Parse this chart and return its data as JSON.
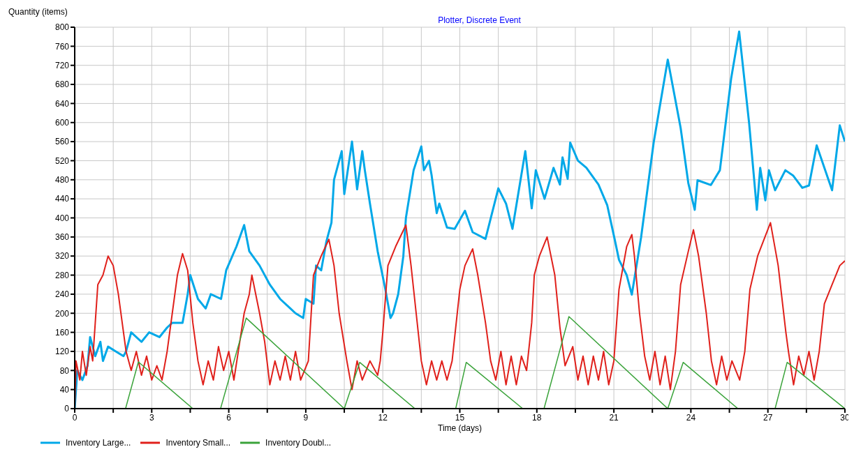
{
  "chart_data": {
    "type": "line",
    "title": "Plotter, Discrete Event",
    "xlabel": "Time (days)",
    "ylabel": "Quantity (items)",
    "xlim": [
      0,
      30
    ],
    "xticks": [
      0,
      {
        "value": 1.5,
        "label": null
      },
      3,
      {
        "value": 4.5,
        "label": null
      },
      6,
      {
        "value": 7.5,
        "label": null
      },
      9,
      {
        "value": 10.5,
        "label": null
      },
      12,
      {
        "value": 13.5,
        "label": null
      },
      15,
      {
        "value": 16.5,
        "label": null
      },
      18,
      {
        "value": 19.5,
        "label": null
      },
      21,
      {
        "value": 22.5,
        "label": null
      },
      24,
      {
        "value": 25.5,
        "label": null
      },
      27,
      {
        "value": 28.5,
        "label": null
      },
      30
    ],
    "ylim": [
      0,
      800
    ],
    "yticks": [
      0,
      40,
      80,
      120,
      160,
      200,
      240,
      280,
      320,
      360,
      400,
      440,
      480,
      520,
      560,
      600,
      640,
      680,
      720,
      760,
      800
    ],
    "grid": true,
    "legend": "bottom",
    "marker": "none",
    "line_style": "solid",
    "series": [
      {
        "name": "Inventory Large...",
        "color": "#00a8e8",
        "x": [
          0,
          0.1,
          0.3,
          0.5,
          0.6,
          0.8,
          1.0,
          1.1,
          1.3,
          1.6,
          1.9,
          2.0,
          2.2,
          2.6,
          2.9,
          3.3,
          3.6,
          3.8,
          4.2,
          4.4,
          4.5,
          4.8,
          5.1,
          5.3,
          5.7,
          5.9,
          6.3,
          6.6,
          6.8,
          7.2,
          7.6,
          8.0,
          8.4,
          8.6,
          8.9,
          9.0,
          9.3,
          9.4,
          9.6,
          9.8,
          10.0,
          10.1,
          10.4,
          10.5,
          10.8,
          11.0,
          11.2,
          11.3,
          11.5,
          11.8,
          12.1,
          12.3,
          12.4,
          12.6,
          12.8,
          12.9,
          13.2,
          13.5,
          13.6,
          13.8,
          13.9,
          14.1,
          14.2,
          14.5,
          14.8,
          15.2,
          15.5,
          16.0,
          16.5,
          16.8,
          17.05,
          17.55,
          17.8,
          17.96,
          18.3,
          18.65,
          18.9,
          19.0,
          19.2,
          19.3,
          19.6,
          19.93,
          20.4,
          20.74,
          21.04,
          21.2,
          21.5,
          21.7,
          22.06,
          22.55,
          23.1,
          23.6,
          23.9,
          24.15,
          24.26,
          24.78,
          25.13,
          25.57,
          25.88,
          26.27,
          26.57,
          26.7,
          26.9,
          27.04,
          27.28,
          27.68,
          27.98,
          28.34,
          28.6,
          28.9,
          29.5,
          29.8,
          30
        ],
        "values": [
          0,
          80,
          60,
          90,
          150,
          110,
          140,
          100,
          130,
          120,
          110,
          120,
          160,
          140,
          160,
          150,
          170,
          180,
          180,
          240,
          280,
          230,
          210,
          240,
          230,
          290,
          340,
          385,
          330,
          300,
          260,
          230,
          210,
          200,
          190,
          230,
          220,
          300,
          290,
          350,
          390,
          480,
          540,
          450,
          560,
          460,
          540,
          500,
          430,
          330,
          250,
          190,
          200,
          240,
          320,
          400,
          500,
          550,
          500,
          520,
          490,
          410,
          430,
          380,
          377,
          415,
          370,
          356,
          462,
          430,
          377,
          540,
          420,
          500,
          440,
          505,
          470,
          527,
          482,
          558,
          520,
          505,
          470,
          427,
          353,
          312,
          280,
          239,
          359,
          558,
          732,
          589,
          473,
          417,
          479,
          469,
          500,
          693,
          791,
          598,
          417,
          505,
          437,
          500,
          458,
          500,
          489,
          463,
          468,
          552,
          458,
          594,
          560
        ]
      },
      {
        "name": "Inventory Small...",
        "color": "#e0201b",
        "x": [
          0,
          0.05,
          0.2,
          0.3,
          0.45,
          0.6,
          0.7,
          0.8,
          0.9,
          1.1,
          1.3,
          1.5,
          1.7,
          1.9,
          2.0,
          2.2,
          2.4,
          2.6,
          2.8,
          3.0,
          3.2,
          3.4,
          3.6,
          3.8,
          4.0,
          4.2,
          4.4,
          4.6,
          4.8,
          5.0,
          5.2,
          5.4,
          5.6,
          5.8,
          6.0,
          6.2,
          6.4,
          6.6,
          6.8,
          6.9,
          7.2,
          7.4,
          7.6,
          7.8,
          8.0,
          8.2,
          8.4,
          8.6,
          8.8,
          9.1,
          9.3,
          9.6,
          9.9,
          10.1,
          10.3,
          10.6,
          10.8,
          11.0,
          11.2,
          11.5,
          11.8,
          11.9,
          12.0,
          12.2,
          12.5,
          12.9,
          13.1,
          13.3,
          13.5,
          13.7,
          13.9,
          14.1,
          14.3,
          14.5,
          14.7,
          14.8,
          15.0,
          15.2,
          15.5,
          15.7,
          16.0,
          16.2,
          16.4,
          16.6,
          16.8,
          17.0,
          17.2,
          17.4,
          17.6,
          17.8,
          17.9,
          18.1,
          18.4,
          18.7,
          18.9,
          19.1,
          19.4,
          19.6,
          19.8,
          20.0,
          20.2,
          20.4,
          20.6,
          20.8,
          21.0,
          21.2,
          21.3,
          21.5,
          21.7,
          21.8,
          22.0,
          22.2,
          22.4,
          22.6,
          22.8,
          23.0,
          23.2,
          23.4,
          23.6,
          23.9,
          24.1,
          24.3,
          24.6,
          24.8,
          25.0,
          25.2,
          25.4,
          25.6,
          25.9,
          26.1,
          26.3,
          26.6,
          27.1,
          27.4,
          27.7,
          27.8,
          28.0,
          28.2,
          28.4,
          28.6,
          28.8,
          29.0,
          29.2,
          29.5,
          29.8,
          30
        ],
        "values": [
          0,
          100,
          60,
          120,
          70,
          130,
          100,
          180,
          260,
          280,
          320,
          300,
          240,
          160,
          120,
          80,
          120,
          70,
          110,
          60,
          90,
          60,
          120,
          200,
          280,
          325,
          290,
          180,
          100,
          50,
          100,
          60,
          130,
          80,
          120,
          60,
          130,
          200,
          240,
          280,
          200,
          140,
          50,
          100,
          60,
          110,
          60,
          120,
          60,
          100,
          280,
          320,
          355,
          300,
          200,
          100,
          40,
          100,
          60,
          100,
          70,
          100,
          160,
          300,
          340,
          385,
          300,
          200,
          100,
          50,
          100,
          60,
          100,
          60,
          100,
          150,
          250,
          300,
          335,
          280,
          180,
          100,
          60,
          120,
          50,
          110,
          50,
          110,
          80,
          180,
          280,
          320,
          360,
          280,
          170,
          90,
          130,
          60,
          110,
          50,
          110,
          60,
          120,
          50,
          100,
          250,
          280,
          340,
          365,
          320,
          200,
          110,
          60,
          120,
          50,
          110,
          40,
          120,
          260,
          330,
          375,
          320,
          200,
          100,
          50,
          110,
          60,
          100,
          60,
          120,
          250,
          320,
          390,
          300,
          160,
          120,
          50,
          110,
          70,
          120,
          60,
          120,
          220,
          260,
          300,
          310
        ]
      },
      {
        "name": "Inventory Doubl...",
        "color": "#3aa33a",
        "x": [
          0,
          1.98,
          2.48,
          4.6,
          5.68,
          6.68,
          10.5,
          11.1,
          13.25,
          14.84,
          15.25,
          17.45,
          18.28,
          19.25,
          23.1,
          23.7,
          25.83,
          27.28,
          27.75,
          30
        ],
        "values": [
          0,
          0,
          98,
          0,
          0,
          190,
          0,
          97,
          0,
          0,
          97,
          0,
          0,
          193,
          0,
          97,
          0,
          0,
          97,
          0
        ]
      }
    ]
  }
}
